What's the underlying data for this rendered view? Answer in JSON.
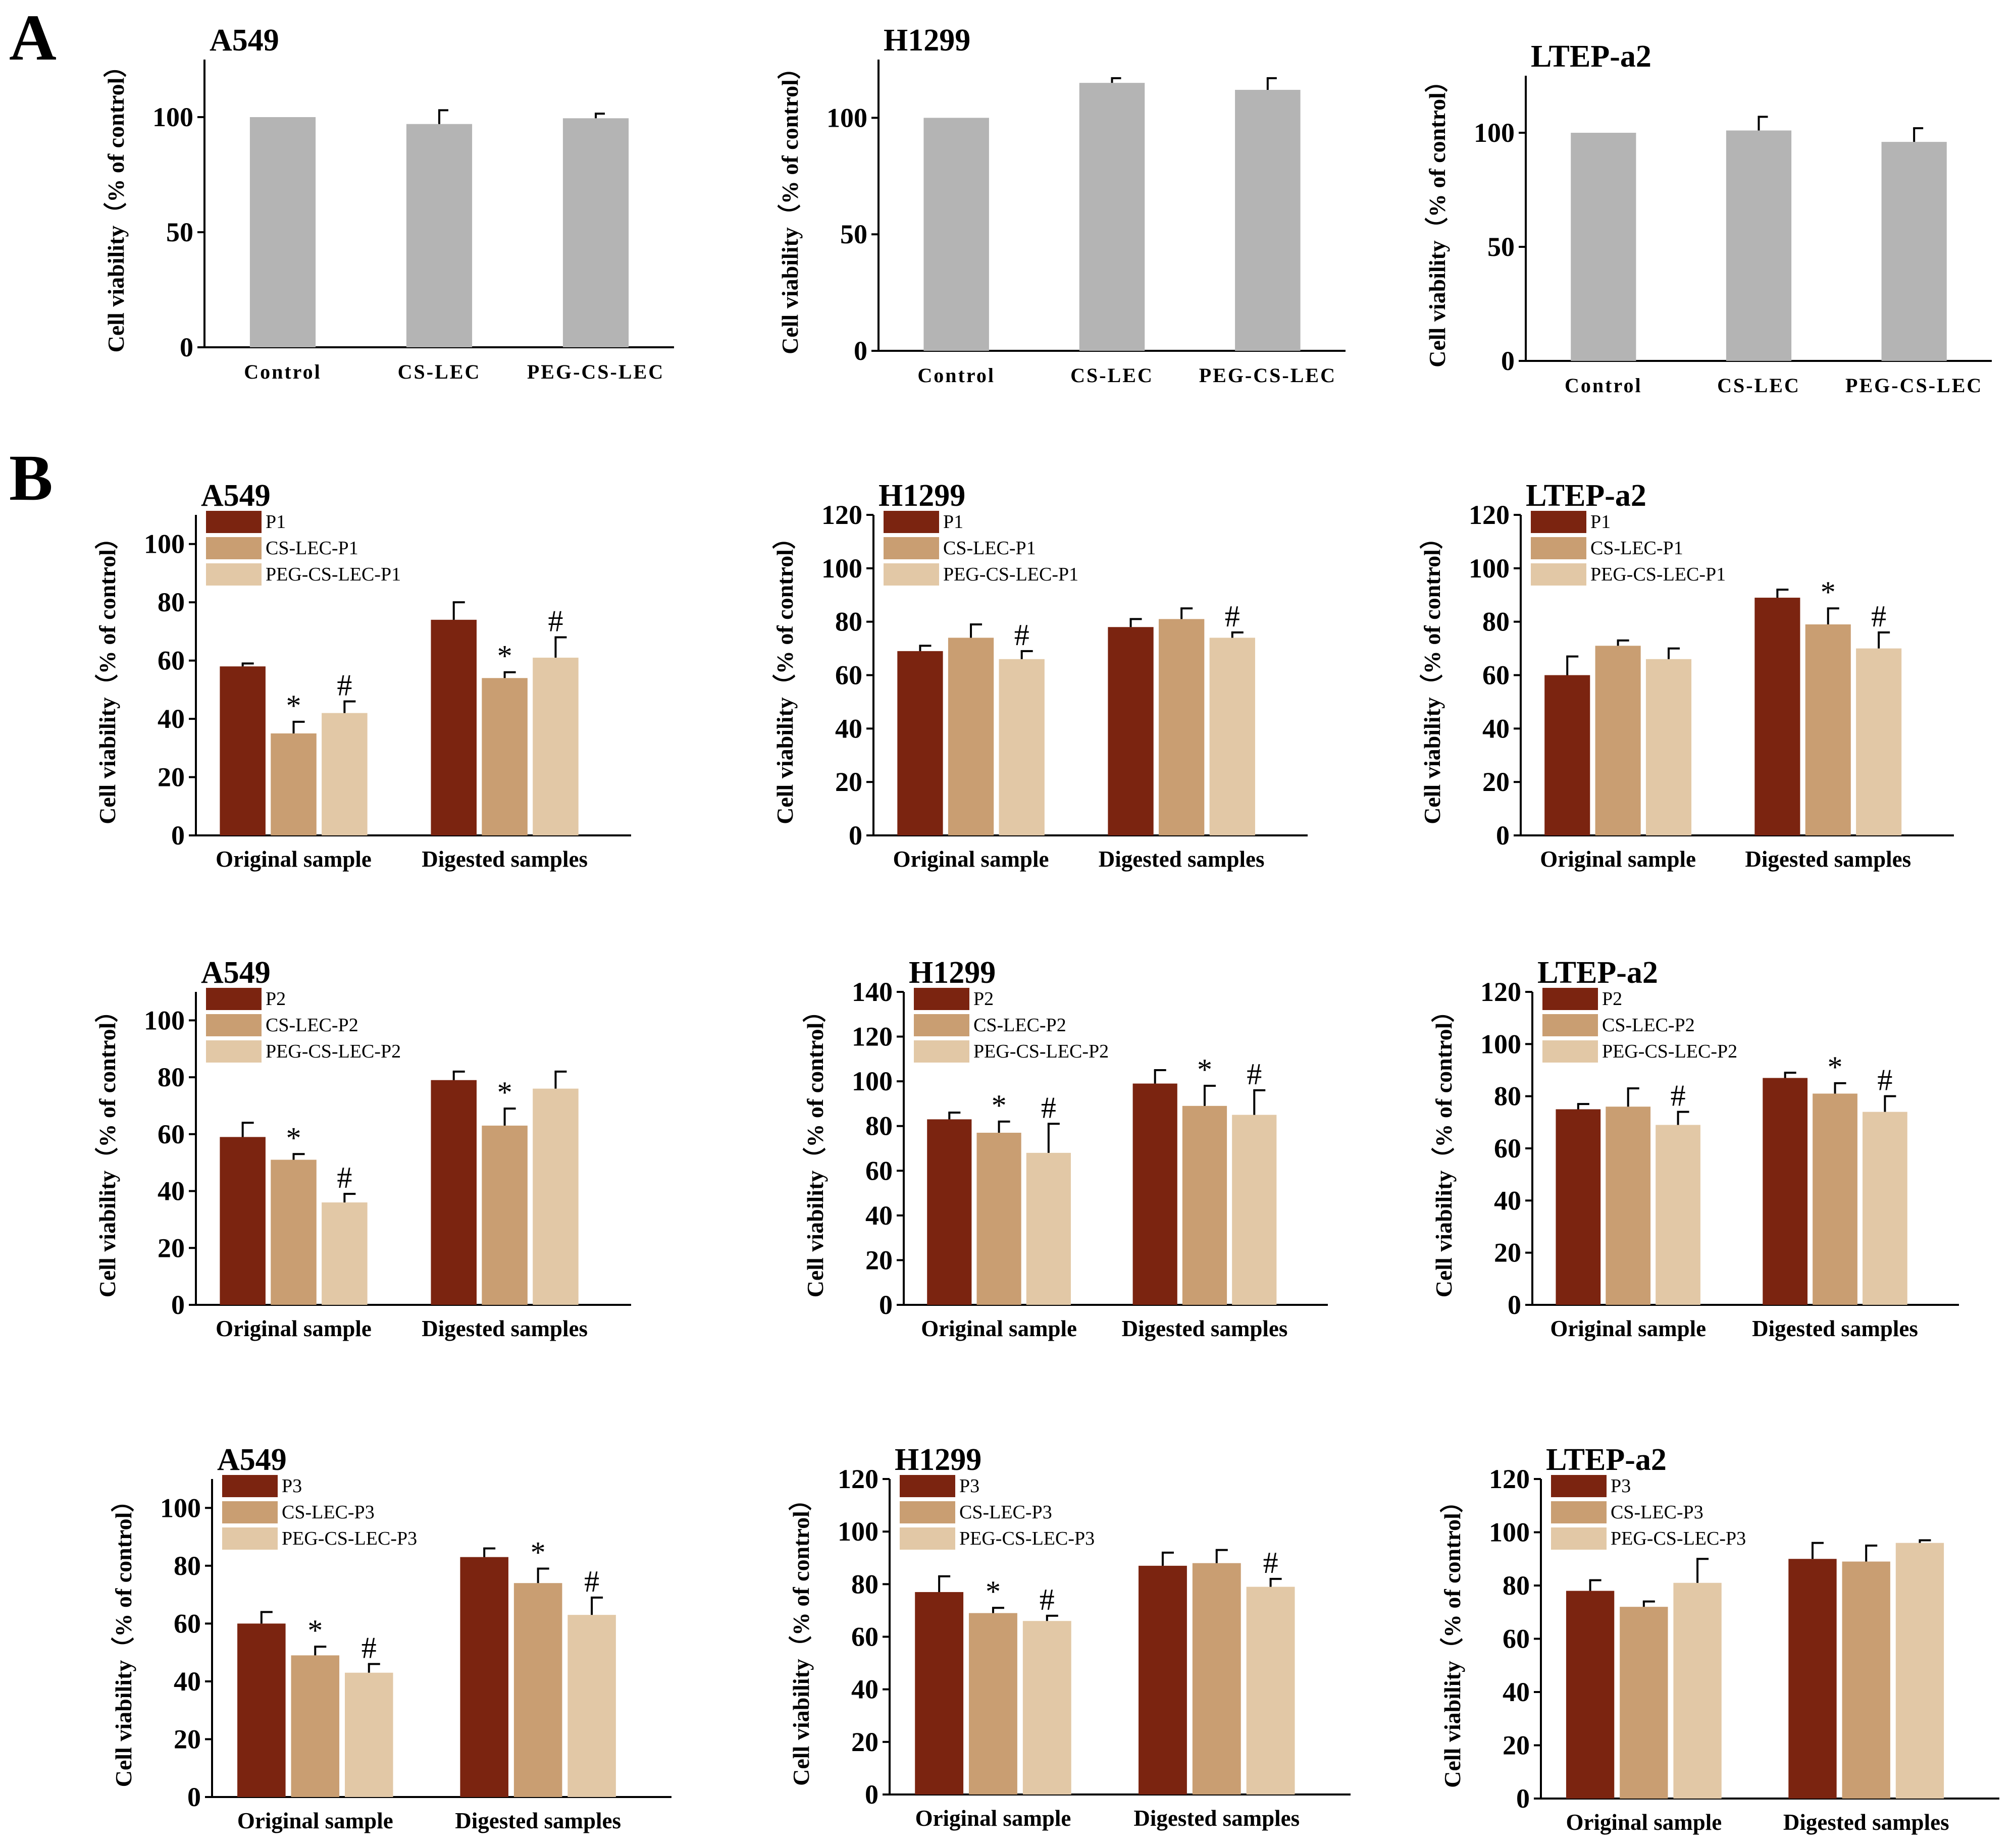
{
  "figure": {
    "panel_labels": [
      "A",
      "B"
    ],
    "colors": {
      "gray_bar": "#b4b4b4",
      "dark": "#7b2410",
      "medium": "#c99e72",
      "light": "#e2c8a6"
    }
  },
  "chart_data": [
    {
      "panel": "A",
      "type": "bar",
      "title": "A549",
      "ylabel": "Cell viability（% of control）",
      "ylim": [
        0,
        125
      ],
      "yticks": [
        0,
        50,
        100
      ],
      "categories": [
        "Control",
        "CS-LEC",
        "PEG-CS-LEC"
      ],
      "series": [
        {
          "name": "Cell viability",
          "values": [
            100,
            97,
            99.5
          ],
          "errors": [
            0,
            6,
            2
          ]
        }
      ]
    },
    {
      "panel": "A",
      "type": "bar",
      "title": "H1299",
      "ylabel": "Cell viability（% of control）",
      "ylim": [
        0,
        125
      ],
      "yticks": [
        0,
        50,
        100
      ],
      "categories": [
        "Control",
        "CS-LEC",
        "PEG-CS-LEC"
      ],
      "series": [
        {
          "name": "Cell viability",
          "values": [
            100,
            115,
            112
          ],
          "errors": [
            0,
            2,
            5
          ]
        }
      ]
    },
    {
      "panel": "A",
      "type": "bar",
      "title": "LTEP-a2",
      "ylabel": "Cell viability（% of control）",
      "ylim": [
        0,
        125
      ],
      "yticks": [
        0,
        50,
        100
      ],
      "categories": [
        "Control",
        "CS-LEC",
        "PEG-CS-LEC"
      ],
      "series": [
        {
          "name": "Cell viability",
          "values": [
            100,
            101,
            96
          ],
          "errors": [
            0,
            6,
            6
          ]
        }
      ]
    },
    {
      "panel": "B",
      "type": "bar",
      "title": "A549",
      "ylabel": "Cell viability（% of control）",
      "ylim": [
        0,
        110
      ],
      "yticks": [
        0,
        20,
        40,
        60,
        80,
        100
      ],
      "categories": [
        "Original sample",
        "Digested samples"
      ],
      "series": [
        {
          "name": "P1",
          "values": [
            58,
            74
          ],
          "errors": [
            1,
            6
          ],
          "marks": [
            "",
            ""
          ]
        },
        {
          "name": "CS-LEC-P1",
          "values": [
            35,
            54
          ],
          "errors": [
            4,
            2
          ],
          "marks": [
            "*",
            "*"
          ]
        },
        {
          "name": "PEG-CS-LEC-P1",
          "values": [
            42,
            61
          ],
          "errors": [
            4,
            7
          ],
          "marks": [
            "#",
            "#"
          ]
        }
      ]
    },
    {
      "panel": "B",
      "type": "bar",
      "title": "H1299",
      "ylabel": "Cell viability（% of control）",
      "ylim": [
        0,
        120
      ],
      "yticks": [
        0,
        20,
        40,
        60,
        80,
        100,
        120
      ],
      "categories": [
        "Original sample",
        "Digested samples"
      ],
      "series": [
        {
          "name": "P1",
          "values": [
            69,
            78
          ],
          "errors": [
            2,
            3
          ],
          "marks": [
            "",
            ""
          ]
        },
        {
          "name": "CS-LEC-P1",
          "values": [
            74,
            81
          ],
          "errors": [
            5,
            4
          ],
          "marks": [
            "",
            ""
          ]
        },
        {
          "name": "PEG-CS-LEC-P1",
          "values": [
            66,
            74
          ],
          "errors": [
            3,
            2
          ],
          "marks": [
            "#",
            "#"
          ]
        }
      ]
    },
    {
      "panel": "B",
      "type": "bar",
      "title": "LTEP-a2",
      "ylabel": "Cell viability（% of control）",
      "ylim": [
        0,
        120
      ],
      "yticks": [
        0,
        20,
        40,
        60,
        80,
        100,
        120
      ],
      "categories": [
        "Original sample",
        "Digested samples"
      ],
      "series": [
        {
          "name": "P1",
          "values": [
            60,
            89
          ],
          "errors": [
            7,
            3
          ],
          "marks": [
            "",
            ""
          ]
        },
        {
          "name": "CS-LEC-P1",
          "values": [
            71,
            79
          ],
          "errors": [
            2,
            6
          ],
          "marks": [
            "",
            "*"
          ]
        },
        {
          "name": "PEG-CS-LEC-P1",
          "values": [
            66,
            70
          ],
          "errors": [
            4,
            6
          ],
          "marks": [
            "",
            "#"
          ]
        }
      ]
    },
    {
      "panel": "B",
      "type": "bar",
      "title": "A549",
      "ylabel": "Cell viability（% of control）",
      "ylim": [
        0,
        110
      ],
      "yticks": [
        0,
        20,
        40,
        60,
        80,
        100
      ],
      "categories": [
        "Original sample",
        "Digested samples"
      ],
      "series": [
        {
          "name": "P2",
          "values": [
            59,
            79
          ],
          "errors": [
            5,
            3
          ],
          "marks": [
            "",
            ""
          ]
        },
        {
          "name": "CS-LEC-P2",
          "values": [
            51,
            63
          ],
          "errors": [
            2,
            6
          ],
          "marks": [
            "*",
            "*"
          ]
        },
        {
          "name": "PEG-CS-LEC-P2",
          "values": [
            36,
            76
          ],
          "errors": [
            3,
            6
          ],
          "marks": [
            "#",
            ""
          ]
        }
      ]
    },
    {
      "panel": "B",
      "type": "bar",
      "title": "H1299",
      "ylabel": "Cell viability（% of control）",
      "ylim": [
        0,
        140
      ],
      "yticks": [
        0,
        20,
        40,
        60,
        80,
        100,
        120,
        140
      ],
      "categories": [
        "Original sample",
        "Digested samples"
      ],
      "series": [
        {
          "name": "P2",
          "values": [
            83,
            99
          ],
          "errors": [
            3,
            6
          ],
          "marks": [
            "",
            ""
          ]
        },
        {
          "name": "CS-LEC-P2",
          "values": [
            77,
            89
          ],
          "errors": [
            5,
            9
          ],
          "marks": [
            "*",
            "*"
          ]
        },
        {
          "name": "PEG-CS-LEC-P2",
          "values": [
            68,
            85
          ],
          "errors": [
            13,
            11
          ],
          "marks": [
            "#",
            "#"
          ]
        }
      ]
    },
    {
      "panel": "B",
      "type": "bar",
      "title": "LTEP-a2",
      "ylabel": "Cell viability（% of control）",
      "ylim": [
        0,
        120
      ],
      "yticks": [
        0,
        20,
        40,
        60,
        80,
        100,
        120
      ],
      "categories": [
        "Original sample",
        "Digested samples"
      ],
      "series": [
        {
          "name": "P2",
          "values": [
            75,
            87
          ],
          "errors": [
            2,
            2
          ],
          "marks": [
            "",
            ""
          ]
        },
        {
          "name": "CS-LEC-P2",
          "values": [
            76,
            81
          ],
          "errors": [
            7,
            4
          ],
          "marks": [
            "",
            "*"
          ]
        },
        {
          "name": "PEG-CS-LEC-P2",
          "values": [
            69,
            74
          ],
          "errors": [
            5,
            6
          ],
          "marks": [
            "#",
            "#"
          ]
        }
      ]
    },
    {
      "panel": "B",
      "type": "bar",
      "title": "A549",
      "ylabel": "Cell viability（% of control）",
      "ylim": [
        0,
        110
      ],
      "yticks": [
        0,
        20,
        40,
        60,
        80,
        100
      ],
      "categories": [
        "Original sample",
        "Digested samples"
      ],
      "series": [
        {
          "name": "P3",
          "values": [
            60,
            83
          ],
          "errors": [
            4,
            3
          ],
          "marks": [
            "",
            ""
          ]
        },
        {
          "name": "CS-LEC-P3",
          "values": [
            49,
            74
          ],
          "errors": [
            3,
            5
          ],
          "marks": [
            "*",
            "*"
          ]
        },
        {
          "name": "PEG-CS-LEC-P3",
          "values": [
            43,
            63
          ],
          "errors": [
            3,
            6
          ],
          "marks": [
            "#",
            "#"
          ]
        }
      ]
    },
    {
      "panel": "B",
      "type": "bar",
      "title": "H1299",
      "ylabel": "Cell viability（% of control）",
      "ylim": [
        0,
        120
      ],
      "yticks": [
        0,
        20,
        40,
        60,
        80,
        100,
        120
      ],
      "categories": [
        "Original sample",
        "Digested samples"
      ],
      "series": [
        {
          "name": "P3",
          "values": [
            77,
            87
          ],
          "errors": [
            6,
            5
          ],
          "marks": [
            "",
            ""
          ]
        },
        {
          "name": "CS-LEC-P3",
          "values": [
            69,
            88
          ],
          "errors": [
            2,
            5
          ],
          "marks": [
            "*",
            ""
          ]
        },
        {
          "name": "PEG-CS-LEC-P3",
          "values": [
            66,
            79
          ],
          "errors": [
            2,
            3
          ],
          "marks": [
            "#",
            "#"
          ]
        }
      ]
    },
    {
      "panel": "B",
      "type": "bar",
      "title": "LTEP-a2",
      "ylabel": "Cell viability（% of control）",
      "ylim": [
        0,
        120
      ],
      "yticks": [
        0,
        20,
        40,
        60,
        80,
        100,
        120
      ],
      "categories": [
        "Original sample",
        "Digested samples"
      ],
      "series": [
        {
          "name": "P3",
          "values": [
            78,
            90
          ],
          "errors": [
            4,
            6
          ],
          "marks": [
            "",
            ""
          ]
        },
        {
          "name": "CS-LEC-P3",
          "values": [
            72,
            89
          ],
          "errors": [
            2,
            6
          ],
          "marks": [
            "",
            ""
          ]
        },
        {
          "name": "PEG-CS-LEC-P3",
          "values": [
            81,
            96
          ],
          "errors": [
            9,
            1
          ],
          "marks": [
            "",
            ""
          ]
        }
      ]
    }
  ]
}
